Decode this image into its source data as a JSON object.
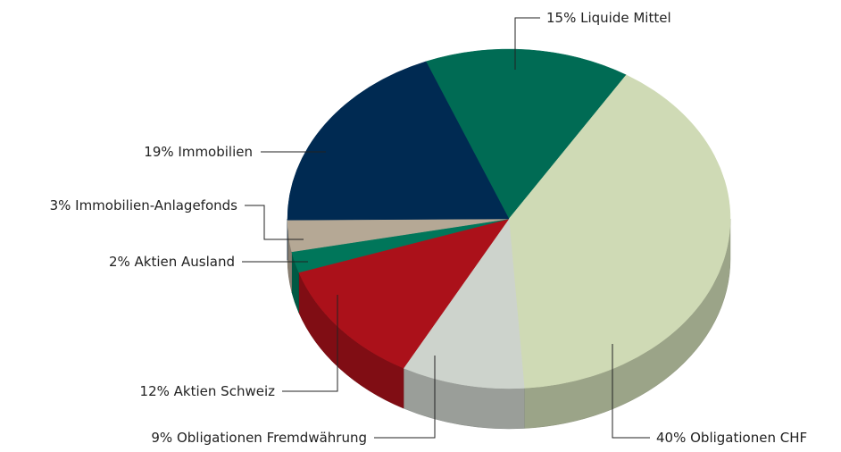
{
  "chart_data": {
    "type": "pie",
    "categories": [
      "Liquide Mittel",
      "Obligationen CHF",
      "Obligationen Fremdwährung",
      "Aktien Schweiz",
      "Aktien Ausland",
      "Immobilien-Anlagefonds",
      "Immobilien"
    ],
    "values": [
      15,
      40,
      9,
      12,
      2,
      3,
      19
    ],
    "value_labels": [
      "15%",
      "40%",
      "9%",
      "12%",
      "2%",
      "3%",
      "19%"
    ],
    "colors": [
      "#006b54",
      "#cfdab5",
      "#cdd3cc",
      "#ab111a",
      "#00765a",
      "#b5a895",
      "#002a52"
    ]
  }
}
